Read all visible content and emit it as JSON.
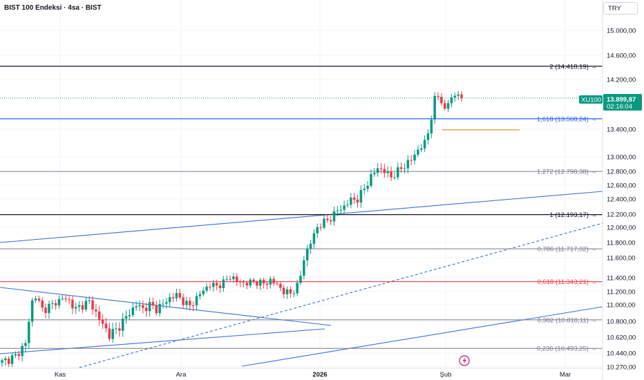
{
  "header": {
    "title": "BIST 100 Endeksi · 4sa · BIST",
    "currency_label": "TRY"
  },
  "colors": {
    "up": "#089981",
    "down": "#f23645",
    "trendline": "#3b6fd6",
    "level_black": "#131722",
    "level_blue": "#2962ff",
    "level_gray": "#787b86",
    "level_red": "#f23645",
    "level_orange": "#e0a030"
  },
  "chart_data": {
    "type": "candlestick",
    "title": "BIST 100 Endeksi · 4sa · BIST",
    "xlabel": "",
    "ylabel": "",
    "ylim": [
      10270,
      15200
    ],
    "y_ticks": [
      "15.000,00",
      "14.600,00",
      "14.200,00",
      "13.400,00",
      "13.000,00",
      "12.800,00",
      "12.600,00",
      "12.400,00",
      "12.200,00",
      "12.000,00",
      "11.800,00",
      "11.600,00",
      "11.400,00",
      "11.200,00",
      "11.000,00",
      "10.800,00",
      "10.620,00",
      "10.440,00",
      "10.270,00"
    ],
    "x_ticks": [
      "Kas",
      "Ara",
      "2026",
      "Şub",
      "Mar"
    ],
    "fib_levels": [
      {
        "ratio": "2",
        "value": 14418.19,
        "label": "2 (14.418,19)",
        "color": "black"
      },
      {
        "ratio": "1,618",
        "value": 13568.24,
        "label": "1,618 (13.568,24)",
        "color": "blue"
      },
      {
        "ratio": "1,272",
        "value": 12798.38,
        "label": "1,272 (12.798,38)",
        "color": "gray"
      },
      {
        "ratio": "1",
        "value": 12193.17,
        "label": "1 (12.193,17)",
        "color": "black"
      },
      {
        "ratio": "0,786",
        "value": 11717.02,
        "label": "0,786 (11.717,02)",
        "color": "gray"
      },
      {
        "ratio": "0,618",
        "value": 11343.21,
        "label": "0,618 (11.343,21)",
        "color": "red"
      },
      {
        "ratio": "0,382",
        "value": 10818.11,
        "label": "0,382 (10.818,11)",
        "color": "gray"
      },
      {
        "ratio": "0,236",
        "value": 10493.25,
        "label": "0,236 (10.493,25)",
        "color": "gray"
      }
    ],
    "current_price": {
      "symbol": "XU100",
      "value": 13899.87,
      "label": "13.899,87",
      "countdown": "02:16:04"
    },
    "waypoints": [
      [
        0,
        10330
      ],
      [
        4,
        10400
      ],
      [
        7,
        10550
      ],
      [
        9,
        11050
      ],
      [
        10,
        11130
      ],
      [
        12,
        10940
      ],
      [
        15,
        11000
      ],
      [
        18,
        11100
      ],
      [
        20,
        11060
      ],
      [
        22,
        10940
      ],
      [
        24,
        11000
      ],
      [
        26,
        11050
      ],
      [
        28,
        10900
      ],
      [
        30,
        10760
      ],
      [
        32,
        10650
      ],
      [
        34,
        10700
      ],
      [
        36,
        10800
      ],
      [
        38,
        10900
      ],
      [
        40,
        11000
      ],
      [
        42,
        10950
      ],
      [
        44,
        11000
      ],
      [
        46,
        10950
      ],
      [
        48,
        11010
      ],
      [
        50,
        11100
      ],
      [
        52,
        11150
      ],
      [
        54,
        11050
      ],
      [
        56,
        10980
      ],
      [
        58,
        11100
      ],
      [
        60,
        11220
      ],
      [
        62,
        11300
      ],
      [
        64,
        11280
      ],
      [
        66,
        11330
      ],
      [
        68,
        11420
      ],
      [
        70,
        11350
      ],
      [
        72,
        11320
      ],
      [
        74,
        11330
      ],
      [
        76,
        11340
      ],
      [
        78,
        11310
      ],
      [
        80,
        11360
      ],
      [
        82,
        11300
      ],
      [
        84,
        11200
      ],
      [
        86,
        11170
      ],
      [
        88,
        11280
      ],
      [
        89,
        11420
      ],
      [
        90,
        11600
      ],
      [
        92,
        11800
      ],
      [
        94,
        12000
      ],
      [
        96,
        12080
      ],
      [
        98,
        12140
      ],
      [
        100,
        12250
      ],
      [
        102,
        12300
      ],
      [
        104,
        12390
      ],
      [
        106,
        12400
      ],
      [
        108,
        12550
      ],
      [
        110,
        12720
      ],
      [
        112,
        12850
      ],
      [
        114,
        12800
      ],
      [
        116,
        12720
      ],
      [
        118,
        12800
      ],
      [
        120,
        12880
      ],
      [
        122,
        12960
      ],
      [
        124,
        13100
      ],
      [
        126,
        13200
      ],
      [
        127,
        13350
      ],
      [
        128,
        13600
      ],
      [
        129,
        13880
      ],
      [
        130,
        13930
      ],
      [
        131,
        13850
      ],
      [
        132,
        13700
      ],
      [
        133,
        13830
      ],
      [
        134,
        13900
      ],
      [
        135,
        13940
      ],
      [
        136,
        13990
      ],
      [
        137,
        13899.87
      ]
    ]
  }
}
